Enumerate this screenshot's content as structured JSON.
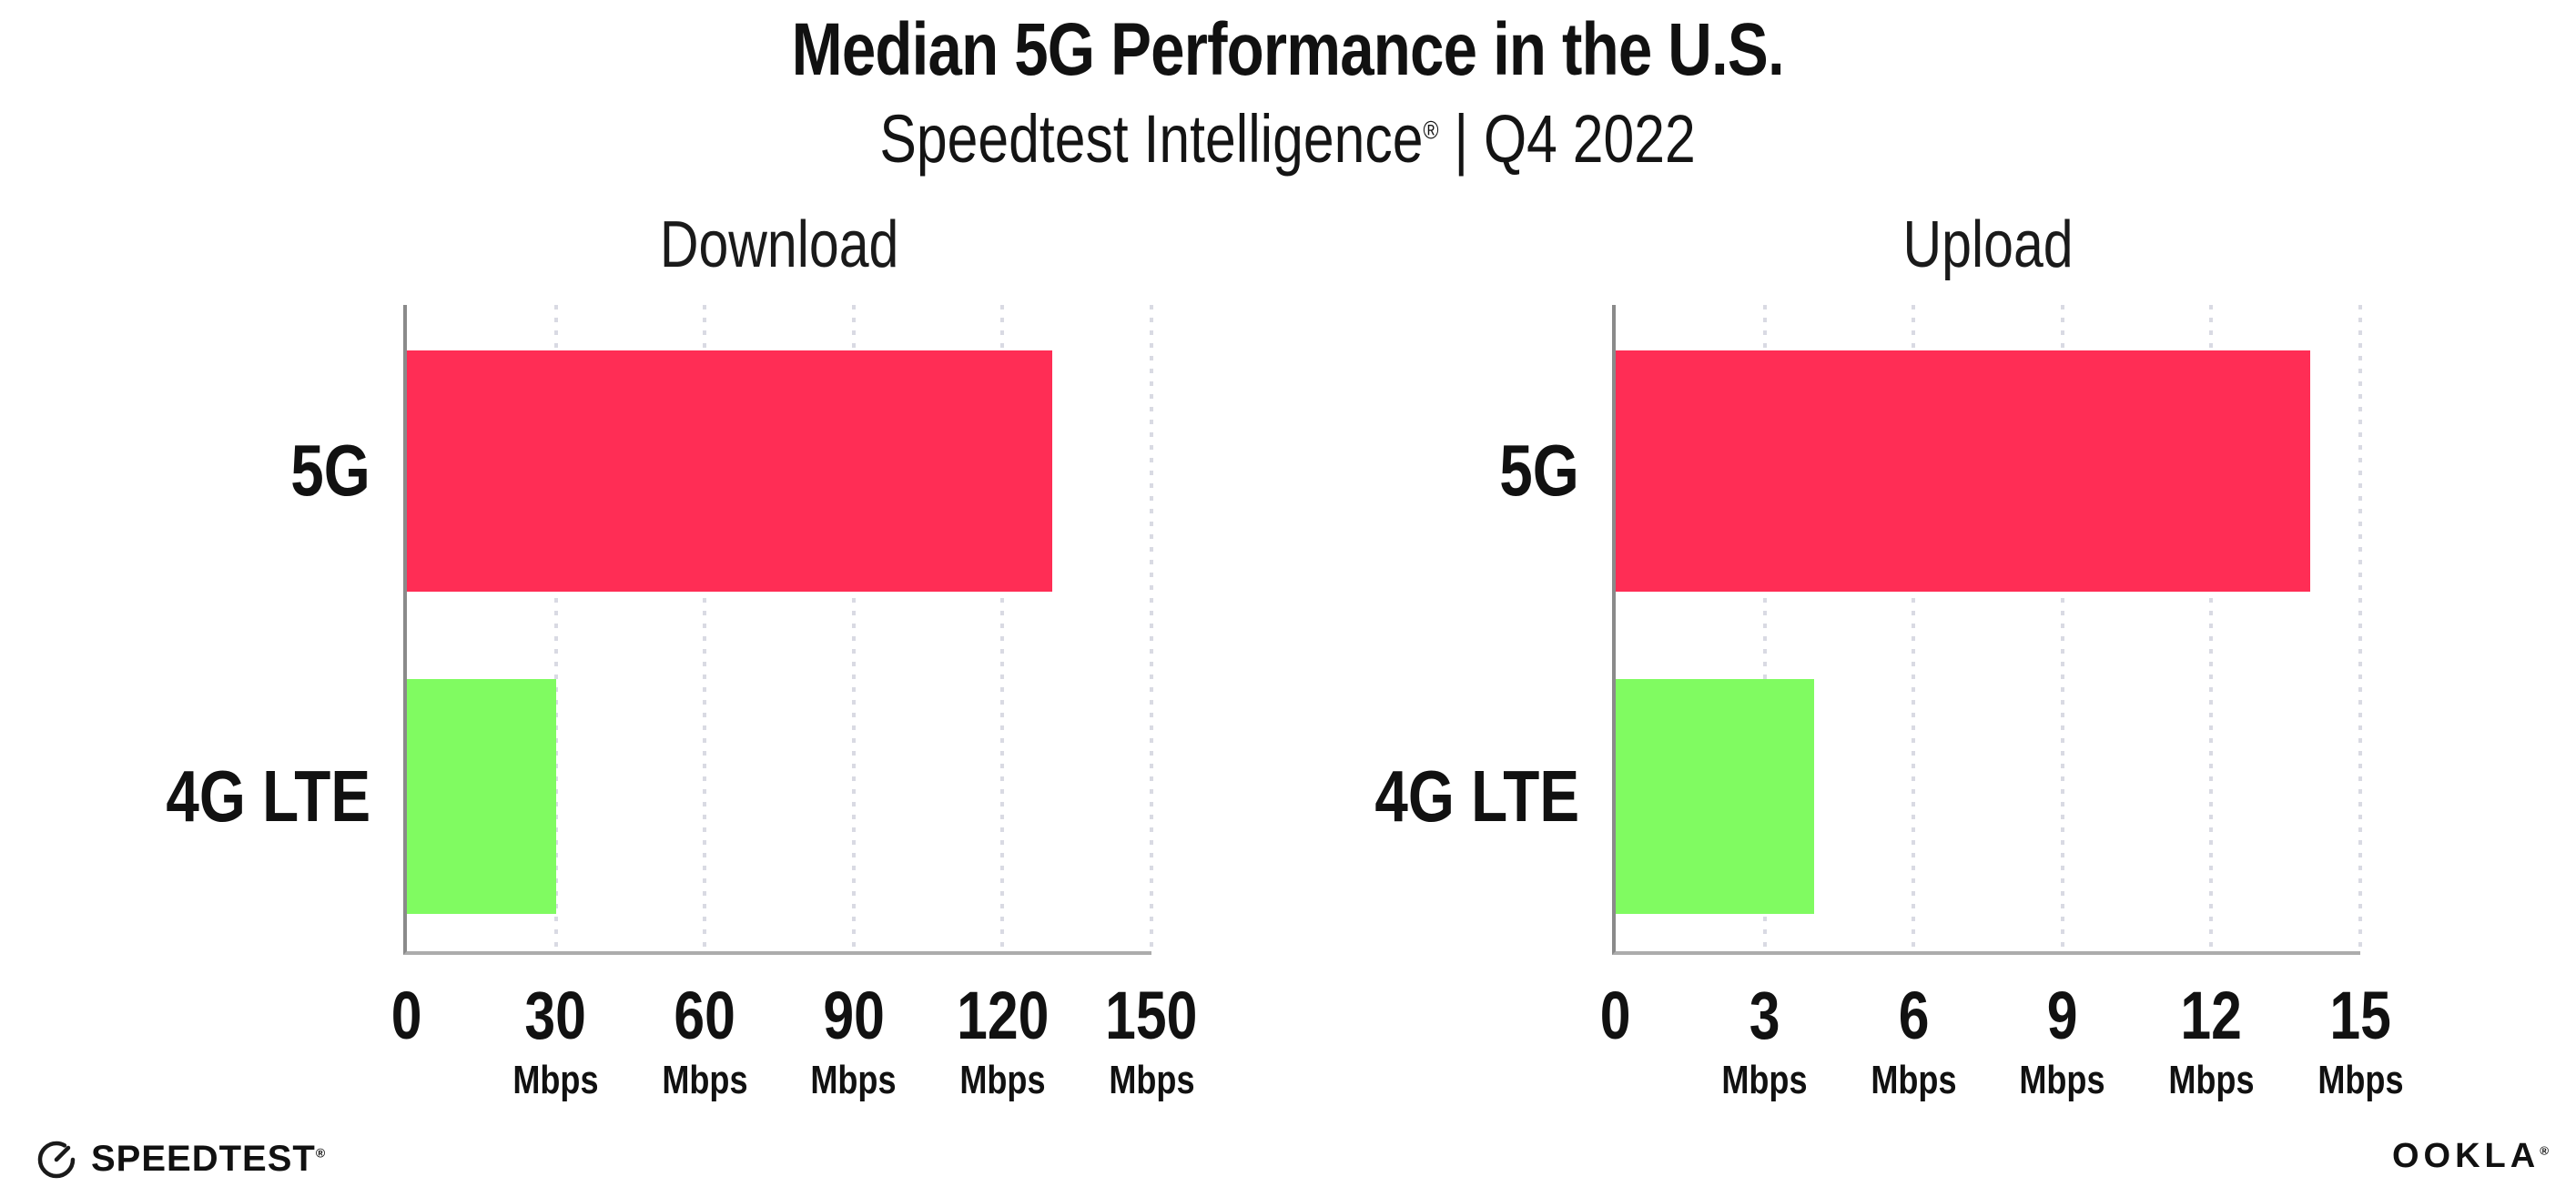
{
  "header": {
    "title": "Median 5G Performance in the U.S.",
    "subtitle_brand": "Speedtest Intelligence",
    "subtitle_reg": "®",
    "subtitle_tail": "| Q4 2022"
  },
  "colors": {
    "bar_5g": "#FF2D55",
    "bar_4g_lte": "#80FB61",
    "gridline": "#d9dae3",
    "axis_y": "#8a8a8a",
    "axis_x": "#acacac",
    "text": "#111111"
  },
  "chart_data": [
    {
      "type": "bar",
      "title": "Download",
      "orientation": "horizontal",
      "categories": [
        "5G",
        "4G LTE"
      ],
      "values": [
        130,
        30
      ],
      "unit": "Mbps",
      "xlim": [
        0,
        150
      ],
      "xticks": [
        0,
        30,
        60,
        90,
        120,
        150
      ],
      "tick_units": [
        "",
        "Mbps",
        "Mbps",
        "Mbps",
        "Mbps",
        "Mbps"
      ],
      "bar_colors": [
        "bar_5g",
        "bar_4g_lte"
      ],
      "grid": "dotted vertical gridlines at each tick",
      "legend": "none"
    },
    {
      "type": "bar",
      "title": "Upload",
      "orientation": "horizontal",
      "categories": [
        "5G",
        "4G LTE"
      ],
      "values": [
        14,
        4
      ],
      "unit": "Mbps",
      "xlim": [
        0,
        15
      ],
      "xticks": [
        0,
        3,
        6,
        9,
        12,
        15
      ],
      "tick_units": [
        "",
        "Mbps",
        "Mbps",
        "Mbps",
        "Mbps",
        "Mbps"
      ],
      "bar_colors": [
        "bar_5g",
        "bar_4g_lte"
      ],
      "grid": "dotted vertical gridlines at each tick",
      "legend": "none"
    }
  ],
  "footer": {
    "speedtest_label": "SPEEDTEST",
    "speedtest_mark": "®",
    "ookla_label": "OOKLA",
    "ookla_mark": "®"
  }
}
